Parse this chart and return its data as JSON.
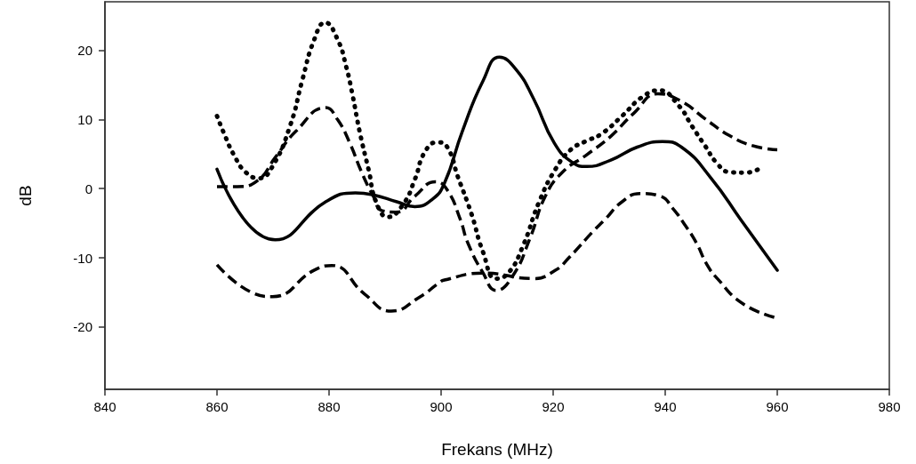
{
  "chart_data": {
    "type": "line",
    "xlabel": "Frekans (MHz)",
    "ylabel": "dB",
    "xlim": [
      840,
      980
    ],
    "xticks": [
      840,
      860,
      880,
      900,
      920,
      940,
      960,
      980
    ],
    "ylim": [
      -29,
      27
    ],
    "yticks": [
      -20,
      -10,
      0,
      10,
      20
    ],
    "grid": false,
    "marker": "none",
    "series": [
      {
        "color": "#000000",
        "line_style": "solid",
        "x": [
          860,
          870.4,
          879.4,
          884.7,
          887.9,
          892.1,
          895.3,
          898.5,
          900.6,
          903.8,
          907.5,
          910.4,
          913.3,
          916.5,
          920.2,
          923.4,
          926,
          930.2,
          935,
          939.5,
          942.9,
          948.2,
          953.5,
          960
        ],
        "values": [
          2.8,
          -7.4,
          -1.9,
          -0.6,
          -0.9,
          -1.9,
          -2.6,
          -1.5,
          0.8,
          8.3,
          15.6,
          19,
          17.3,
          13,
          6.6,
          3.8,
          3.2,
          4.1,
          6,
          6.8,
          6,
          1.5,
          -4.5,
          -11.8
        ]
      },
      {
        "color": "#000000",
        "line_style": "dotted",
        "x": [
          860,
          861.4,
          863,
          865.1,
          867.5,
          869.9,
          873.1,
          875.2,
          877.3,
          879.3,
          881.5,
          883.1,
          884.2,
          885.5,
          887.1,
          888.4,
          890.5,
          893.2,
          895.3,
          897.1,
          899.3,
          901.1,
          903,
          905.4,
          907.5,
          909.8,
          912,
          914.6,
          917.5,
          920.4,
          923.1,
          925.7,
          928.6,
          932.3,
          936,
          938.9,
          942.4,
          944.8,
          947.1,
          949.3,
          951.4,
          954.3,
          957.5
        ],
        "values": [
          10.5,
          7.7,
          4.9,
          2.4,
          1.5,
          3.2,
          9.2,
          15.6,
          21.4,
          24,
          21.6,
          17.5,
          13.5,
          8.1,
          2.6,
          -1.9,
          -4.1,
          -2.3,
          1.3,
          5.3,
          6.7,
          6,
          1.7,
          -3.6,
          -9.2,
          -13,
          -12.2,
          -8.3,
          -1.9,
          2.8,
          5.6,
          6.8,
          7.9,
          10.5,
          13.3,
          14.2,
          12,
          9,
          6.2,
          3.6,
          2.4,
          2.3,
          3.2
        ]
      },
      {
        "color": "#000000",
        "line_style": "dashed",
        "x": [
          860,
          863.6,
          867.3,
          870.4,
          874.1,
          879.4,
          881.5,
          883.7,
          885.8,
          887.9,
          889.5,
          892.1,
          895.3,
          899,
          901.1,
          903.4,
          904.8,
          907.5,
          909.8,
          912.8,
          915.9,
          918.6,
          921.7,
          926,
          930.2,
          934.4,
          938.7,
          942.9,
          947.1,
          951.4,
          955.6,
          960
        ],
        "values": [
          0.3,
          0.3,
          1.2,
          4.5,
          8.3,
          11.7,
          10,
          6.6,
          2.4,
          -1.1,
          -3.2,
          -3.4,
          -1.1,
          1,
          -0.2,
          -4.4,
          -7.9,
          -12.2,
          -14.7,
          -12.6,
          -7.1,
          -1.1,
          2.4,
          4.9,
          7.5,
          10.9,
          13.7,
          12.6,
          10.1,
          7.7,
          6.2,
          5.6
        ]
      },
      {
        "color": "#000000",
        "line_style": "dashed",
        "x": [
          860,
          866.2,
          869.9,
          877.3,
          880.5,
          886.3,
          891.1,
          896.3,
          899.5,
          900.6,
          907.5,
          916.5,
          920.4,
          922.8,
          927.1,
          929.2,
          932.3,
          935.5,
          939.2,
          941.3,
          943.4,
          945.6,
          947.4,
          949.3,
          954,
          960
        ],
        "values": [
          -11,
          -15,
          -15.6,
          -11.8,
          -11.1,
          -15.2,
          -17.7,
          -15.6,
          -13.7,
          -13.2,
          -12.2,
          -13,
          -11.8,
          -10,
          -6.2,
          -4.5,
          -1.9,
          -0.7,
          -1.1,
          -2.8,
          -5.1,
          -7.9,
          -10.9,
          -13,
          -16.7,
          -18.7
        ]
      }
    ]
  }
}
